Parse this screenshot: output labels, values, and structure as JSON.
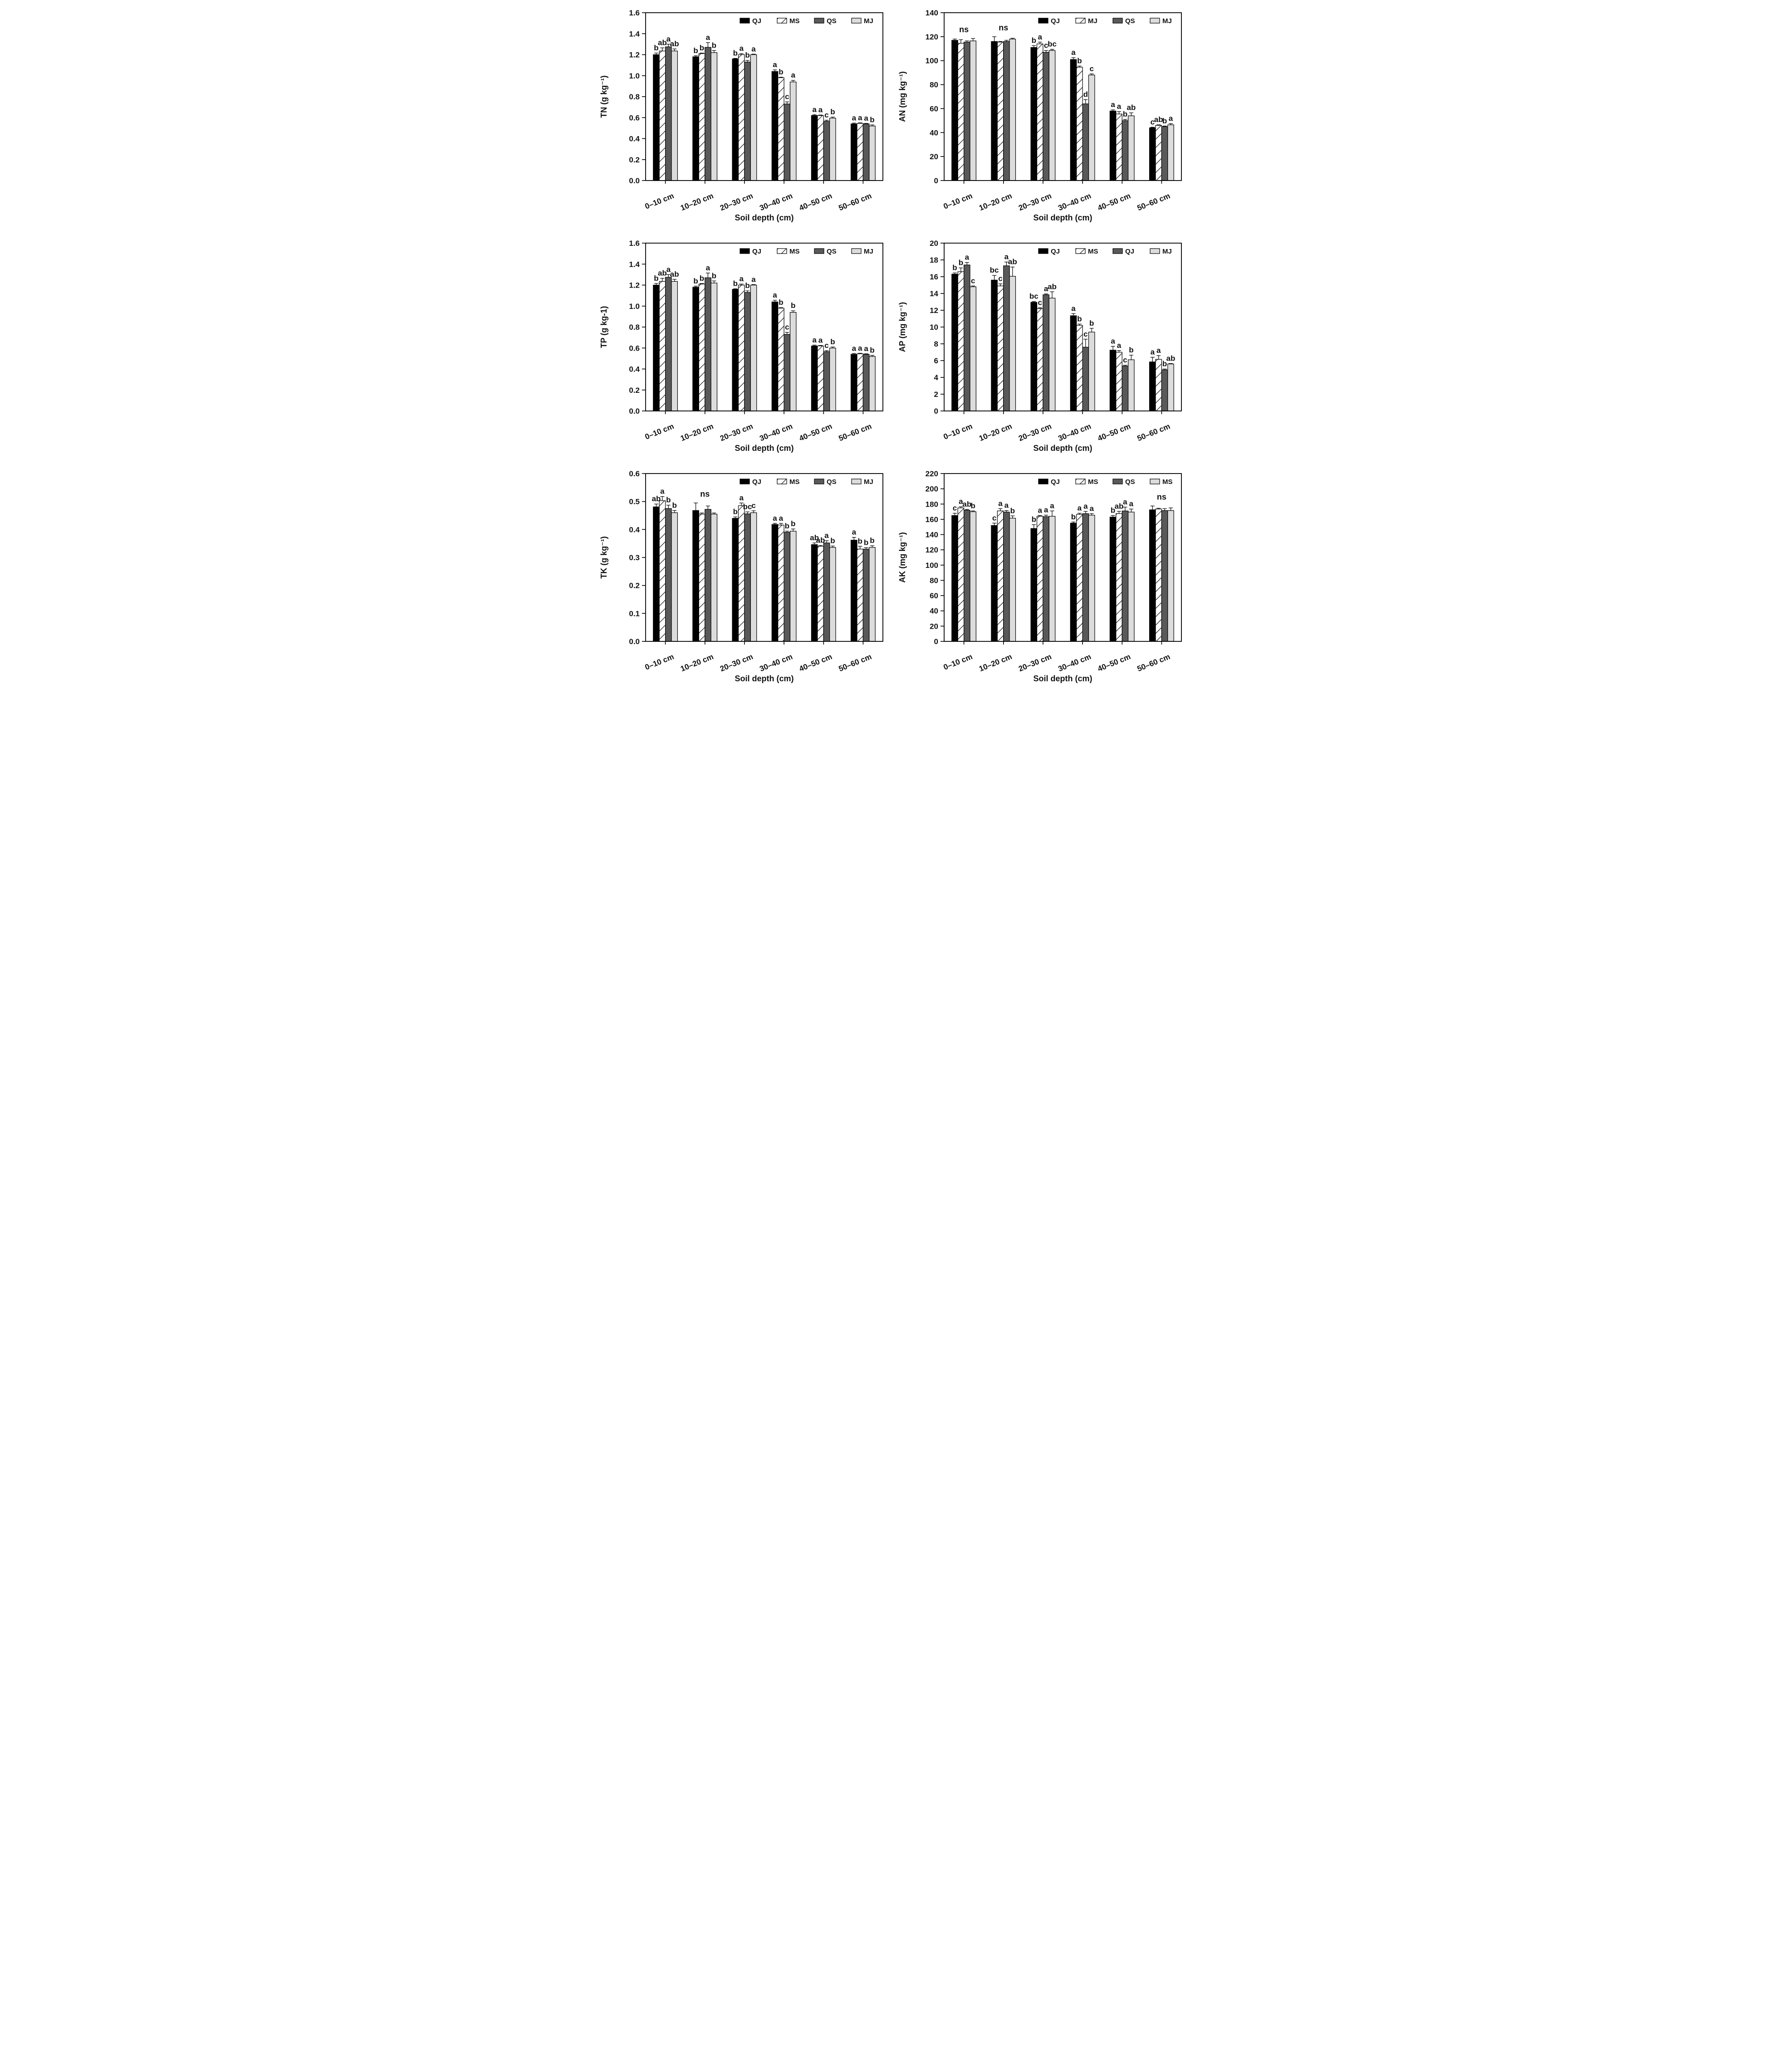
{
  "page": {
    "background": "#ffffff"
  },
  "styles": {
    "series_fills": {
      "solid-black": "#000000",
      "hatched": "hatch",
      "dark-gray": "#595959",
      "light-gray": "#dcdcdc"
    },
    "bar_stroke": "#000000",
    "text_color": "#111111"
  },
  "chart_data": [
    {
      "id": "tn",
      "type": "bar",
      "ylabel": "TN (g kg⁻¹)",
      "xlabel": "Soil depth (cm)",
      "ylim": [
        0,
        1.6
      ],
      "ytick_step": 0.2,
      "ytick_decimals": 1,
      "grid": false,
      "legend_position": "top-inside",
      "categories": [
        "0–10 cm",
        "10–20 cm",
        "20–30 cm",
        "30–40 cm",
        "40–50 cm",
        "50–60 cm"
      ],
      "legend": [
        "QJ",
        "MS",
        "QS",
        "MJ"
      ],
      "group_labels": [
        "",
        "",
        "",
        "",
        "",
        ""
      ],
      "series": [
        {
          "name": "QJ",
          "style": "solid-black",
          "values": [
            1.2,
            1.18,
            1.16,
            1.04,
            0.62,
            0.54
          ],
          "errors": [
            0.015,
            0.01,
            0.005,
            0.015,
            0.008,
            0.008
          ],
          "letters": [
            "b",
            "b",
            "b",
            "a",
            "a",
            "a"
          ]
        },
        {
          "name": "MS",
          "style": "hatched",
          "values": [
            1.235,
            1.21,
            1.2,
            0.98,
            0.62,
            0.545
          ],
          "errors": [
            0.03,
            0.005,
            0.01,
            0.005,
            0.005,
            0.005
          ],
          "letters": [
            "ab",
            "b",
            "a",
            "b",
            "a",
            "a"
          ]
        },
        {
          "name": "QS",
          "style": "dark-gray",
          "values": [
            1.275,
            1.27,
            1.13,
            0.73,
            0.565,
            0.54
          ],
          "errors": [
            0.025,
            0.045,
            0.015,
            0.02,
            0.01,
            0.005
          ],
          "letters": [
            "a",
            "a",
            "b",
            "c",
            "c",
            "a"
          ]
        },
        {
          "name": "MJ",
          "style": "light-gray",
          "values": [
            1.235,
            1.22,
            1.2,
            0.94,
            0.595,
            0.52
          ],
          "errors": [
            0.02,
            0.02,
            0.005,
            0.015,
            0.01,
            0.01
          ],
          "letters": [
            "ab",
            "b",
            "a",
            "a",
            "b",
            "b"
          ]
        }
      ]
    },
    {
      "id": "an",
      "type": "bar",
      "ylabel": "AN (mg kg⁻¹)",
      "xlabel": "Soil depth (cm)",
      "ylim": [
        0,
        140
      ],
      "ytick_step": 20,
      "ytick_decimals": 0,
      "grid": false,
      "legend_position": "top-inside",
      "categories": [
        "0–10 cm",
        "10–20 cm",
        "20–30 cm",
        "30–40 cm",
        "40–50 cm",
        "50–60 cm"
      ],
      "legend": [
        "QJ",
        "MJ",
        "QS",
        "MJ"
      ],
      "group_labels": [
        "ns",
        "ns",
        "",
        "",
        "",
        ""
      ],
      "series": [
        {
          "name": "QJ",
          "style": "solid-black",
          "values": [
            117,
            116,
            111,
            101,
            58,
            44
          ],
          "errors": [
            1,
            4,
            1.5,
            1.5,
            1,
            0.5
          ],
          "letters": [
            "",
            "",
            "b",
            "a",
            "a",
            "c"
          ]
        },
        {
          "name": "MJ-hatched",
          "style": "hatched",
          "values": [
            114.5,
            115.5,
            114,
            94.5,
            55.5,
            46
          ],
          "errors": [
            3,
            0.5,
            1.5,
            1,
            2,
            0.5
          ],
          "letters": [
            "",
            "",
            "a",
            "b",
            "a",
            "ab"
          ]
        },
        {
          "name": "QS",
          "style": "dark-gray",
          "values": [
            115.5,
            116,
            107,
            64,
            50,
            45
          ],
          "errors": [
            1,
            1,
            1.5,
            3.5,
            1,
            0.5
          ],
          "letters": [
            "",
            "",
            "c",
            "d",
            "b",
            "b"
          ]
        },
        {
          "name": "MJ",
          "style": "light-gray",
          "values": [
            116.5,
            118,
            108.5,
            88,
            54,
            46.5
          ],
          "errors": [
            2,
            0.7,
            1,
            1,
            2.5,
            1
          ],
          "letters": [
            "",
            "",
            "bc",
            "c",
            "ab",
            "a"
          ]
        }
      ]
    },
    {
      "id": "tp",
      "type": "bar",
      "ylabel": "TP (g kg-1)",
      "xlabel": "Soil depth (cm)",
      "ylim": [
        0,
        1.6
      ],
      "ytick_step": 0.2,
      "ytick_decimals": 1,
      "grid": false,
      "legend_position": "top-inside",
      "categories": [
        "0–10 cm",
        "10–20 cm",
        "20–30 cm",
        "30–40 cm",
        "40–50 cm",
        "50–60 cm"
      ],
      "legend": [
        "QJ",
        "MS",
        "QS",
        "MJ"
      ],
      "group_labels": [
        "",
        "",
        "",
        "",
        "",
        ""
      ],
      "series": [
        {
          "name": "QJ",
          "style": "solid-black",
          "values": [
            1.2,
            1.18,
            1.16,
            1.04,
            0.62,
            0.54
          ],
          "errors": [
            0.015,
            0.01,
            0.005,
            0.015,
            0.008,
            0.008
          ],
          "letters": [
            "b",
            "b",
            "b",
            "a",
            "a",
            "a"
          ]
        },
        {
          "name": "MS",
          "style": "hatched",
          "values": [
            1.235,
            1.21,
            1.2,
            0.98,
            0.62,
            0.545
          ],
          "errors": [
            0.03,
            0.005,
            0.01,
            0.005,
            0.005,
            0.005
          ],
          "letters": [
            "ab",
            "b",
            "a",
            "b",
            "a",
            "a"
          ]
        },
        {
          "name": "QS",
          "style": "dark-gray",
          "values": [
            1.275,
            1.27,
            1.13,
            0.73,
            0.565,
            0.54
          ],
          "errors": [
            0.025,
            0.045,
            0.015,
            0.02,
            0.01,
            0.005
          ],
          "letters": [
            "a",
            "a",
            "b",
            "c",
            "c",
            "a"
          ]
        },
        {
          "name": "MJ",
          "style": "light-gray",
          "values": [
            1.235,
            1.22,
            1.2,
            0.94,
            0.6,
            0.52
          ],
          "errors": [
            0.02,
            0.02,
            0.005,
            0.015,
            0.01,
            0.01
          ],
          "letters": [
            "ab",
            "b",
            "a",
            "b",
            "b",
            "b"
          ]
        }
      ]
    },
    {
      "id": "ap",
      "type": "bar",
      "ylabel": "AP (mg kg⁻¹)",
      "xlabel": "Soil depth (cm)",
      "ylim": [
        0,
        20
      ],
      "ytick_step": 2,
      "ytick_decimals": 0,
      "grid": false,
      "legend_position": "top-inside",
      "categories": [
        "0–10 cm",
        "10–20 cm",
        "20–30 cm",
        "30–40 cm",
        "40–50 cm",
        "50–60 cm"
      ],
      "legend": [
        "QJ",
        "MS",
        "QJ",
        "MJ"
      ],
      "group_labels": [
        "",
        "",
        "",
        "",
        "",
        ""
      ],
      "series": [
        {
          "name": "QJ",
          "style": "solid-black",
          "values": [
            16.3,
            15.6,
            12.95,
            11.35,
            7.25,
            5.85
          ],
          "errors": [
            0.15,
            0.55,
            0.1,
            0.25,
            0.45,
            0.55
          ],
          "letters": [
            "b",
            "bc",
            "bc",
            "a",
            "a",
            "a"
          ]
        },
        {
          "name": "MS",
          "style": "hatched",
          "values": [
            16.6,
            14.9,
            12.2,
            10.2,
            7.0,
            6.15
          ],
          "errors": [
            0.45,
            0.25,
            0.1,
            0.15,
            0.2,
            0.45
          ],
          "letters": [
            "b",
            "c",
            "c",
            "b",
            "a",
            "a"
          ]
        },
        {
          "name": "QJ-gray",
          "style": "dark-gray",
          "values": [
            17.4,
            17.3,
            13.85,
            7.6,
            5.35,
            4.9
          ],
          "errors": [
            0.3,
            0.45,
            0.1,
            0.95,
            0.1,
            0.1
          ],
          "letters": [
            "a",
            "a",
            "a",
            "c",
            "c",
            "b"
          ]
        },
        {
          "name": "MJ",
          "style": "light-gray",
          "values": [
            14.8,
            16.05,
            13.45,
            9.4,
            6.1,
            5.6
          ],
          "errors": [
            0.1,
            1.1,
            0.75,
            0.45,
            0.55,
            0.05
          ],
          "letters": [
            "c",
            "ab",
            "ab",
            "b",
            "b",
            "ab"
          ]
        }
      ]
    },
    {
      "id": "tk",
      "type": "bar",
      "ylabel": "TK (g kg⁻¹)",
      "xlabel": "Soil depth (cm)",
      "ylim": [
        0,
        0.6
      ],
      "ytick_step": 0.1,
      "ytick_decimals": 1,
      "grid": false,
      "legend_position": "top-inside",
      "categories": [
        "0–10 cm",
        "10–20 cm",
        "20–30 cm",
        "30–40 cm",
        "40–50 cm",
        "50–60 cm"
      ],
      "legend": [
        "QJ",
        "MS",
        "QS",
        "MJ"
      ],
      "group_labels": [
        "",
        "ns",
        "",
        "",
        "",
        ""
      ],
      "series": [
        {
          "name": "QJ",
          "style": "solid-black",
          "values": [
            0.481,
            0.468,
            0.44,
            0.418,
            0.346,
            0.362
          ],
          "errors": [
            0.01,
            0.027,
            0.005,
            0.004,
            0.006,
            0.01
          ],
          "letters": [
            "ab",
            "",
            "b",
            "a",
            "ab",
            "a"
          ]
        },
        {
          "name": "MS",
          "style": "hatched",
          "values": [
            0.503,
            0.455,
            0.485,
            0.416,
            0.34,
            0.33
          ],
          "errors": [
            0.015,
            0.004,
            0.01,
            0.006,
            0.003,
            0.01
          ],
          "letters": [
            "a",
            "",
            "a",
            "a",
            "ab",
            "b"
          ]
        },
        {
          "name": "QS",
          "style": "dark-gray",
          "values": [
            0.475,
            0.472,
            0.456,
            0.39,
            0.352,
            0.33
          ],
          "errors": [
            0.012,
            0.012,
            0.007,
            0.004,
            0.008,
            0.005
          ],
          "letters": [
            "b",
            "",
            "bc",
            "b",
            "a",
            "b"
          ]
        },
        {
          "name": "MJ",
          "style": "light-gray",
          "values": [
            0.46,
            0.455,
            0.46,
            0.394,
            0.336,
            0.336
          ],
          "errors": [
            0.008,
            0.004,
            0.007,
            0.008,
            0.005,
            0.006
          ],
          "letters": [
            "b",
            "",
            "c",
            "b",
            "b",
            "b"
          ]
        }
      ]
    },
    {
      "id": "ak",
      "type": "bar",
      "ylabel": "AK (mg kg⁻¹)",
      "xlabel": "Soil depth (cm)",
      "ylim": [
        0,
        220
      ],
      "ytick_step": 20,
      "ytick_decimals": 0,
      "grid": false,
      "legend_position": "top-inside",
      "categories": [
        "0–10 cm",
        "10–20 cm",
        "20–30 cm",
        "30–40 cm",
        "40–50 cm",
        "50–60 cm"
      ],
      "legend": [
        "QJ",
        "MS",
        "QS",
        "MS"
      ],
      "group_labels": [
        "",
        "",
        "",
        "",
        "",
        "ns"
      ],
      "series": [
        {
          "name": "QJ",
          "style": "solid-black",
          "values": [
            165,
            152,
            148,
            155,
            163,
            172.5
          ],
          "errors": [
            3,
            3,
            5,
            1.5,
            2,
            5
          ],
          "letters": [
            "c",
            "c",
            "b",
            "b",
            "b",
            ""
          ]
        },
        {
          "name": "MS",
          "style": "hatched",
          "values": [
            175,
            171,
            164,
            166.5,
            167.5,
            173.5
          ],
          "errors": [
            1.5,
            3,
            1,
            1.5,
            3,
            1
          ],
          "letters": [
            "a",
            "a",
            "a",
            "a",
            "ab",
            ""
          ]
        },
        {
          "name": "QS",
          "style": "dark-gray",
          "values": [
            172,
            169.5,
            163.5,
            167.5,
            171,
            171.5
          ],
          "errors": [
            1,
            2,
            2,
            3,
            5,
            2.5
          ],
          "letters": [
            "ab",
            "a",
            "a",
            "a",
            "a",
            ""
          ]
        },
        {
          "name": "MS-light",
          "style": "light-gray",
          "values": [
            170,
            161.5,
            164,
            165.5,
            169.5,
            171.5
          ],
          "errors": [
            1,
            3,
            7,
            2,
            4,
            3.5
          ],
          "letters": [
            "b",
            "b",
            "a",
            "a",
            "a",
            ""
          ]
        }
      ]
    }
  ]
}
